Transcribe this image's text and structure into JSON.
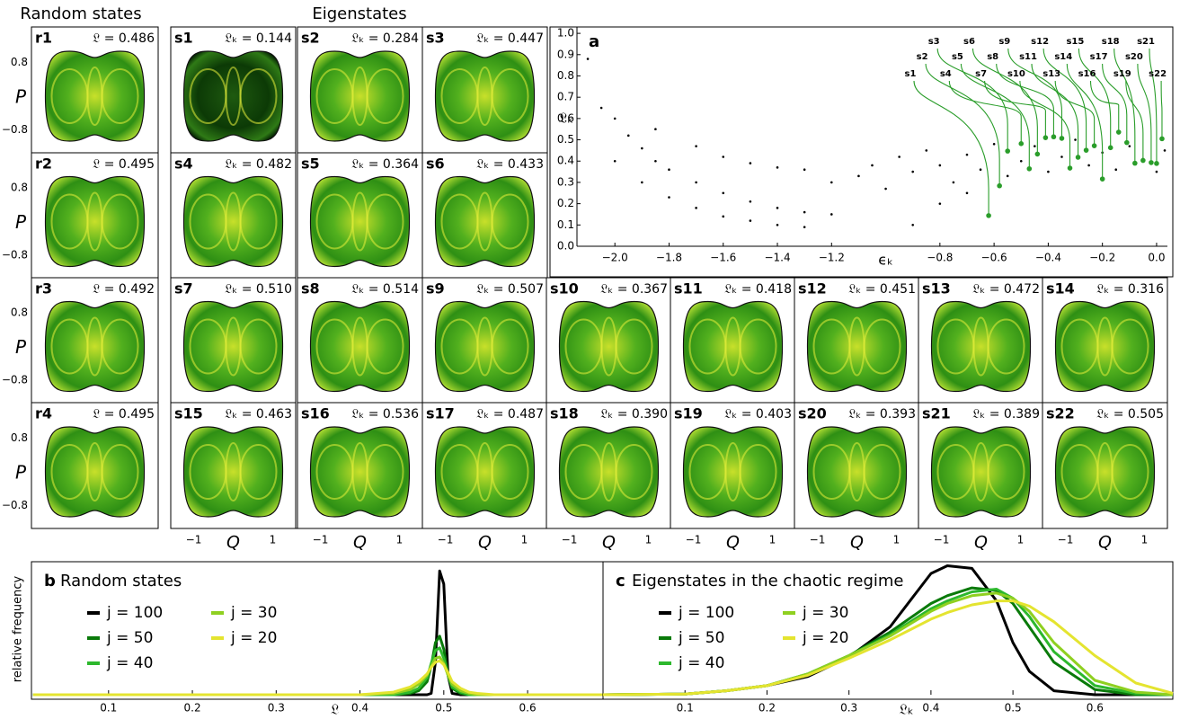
{
  "headers": [
    "Random states",
    "Eigenstates"
  ],
  "thumbnails": [
    {
      "id": "r1",
      "text": "𝔏 = 0.486"
    },
    {
      "id": "r2",
      "text": "𝔏 = 0.495"
    },
    {
      "id": "r3",
      "text": "𝔏 = 0.492"
    },
    {
      "id": "r4",
      "text": "𝔏 = 0.495"
    },
    {
      "id": "s1",
      "text": "𝔏ₖ = 0.144"
    },
    {
      "id": "s2",
      "text": "𝔏ₖ = 0.284"
    },
    {
      "id": "s3",
      "text": "𝔏ₖ = 0.447"
    },
    {
      "id": "s4",
      "text": "𝔏ₖ = 0.482"
    },
    {
      "id": "s5",
      "text": "𝔏ₖ = 0.364"
    },
    {
      "id": "s6",
      "text": "𝔏ₖ = 0.433"
    },
    {
      "id": "s7",
      "text": "𝔏ₖ = 0.510"
    },
    {
      "id": "s8",
      "text": "𝔏ₖ = 0.514"
    },
    {
      "id": "s9",
      "text": "𝔏ₖ = 0.507"
    },
    {
      "id": "s10",
      "text": "𝔏ₖ = 0.367"
    },
    {
      "id": "s11",
      "text": "𝔏ₖ = 0.418"
    },
    {
      "id": "s12",
      "text": "𝔏ₖ = 0.451"
    },
    {
      "id": "s13",
      "text": "𝔏ₖ = 0.472"
    },
    {
      "id": "s14",
      "text": "𝔏ₖ = 0.316"
    },
    {
      "id": "s15",
      "text": "𝔏ₖ = 0.463"
    },
    {
      "id": "s16",
      "text": "𝔏ₖ = 0.536"
    },
    {
      "id": "s17",
      "text": "𝔏ₖ = 0.487"
    },
    {
      "id": "s18",
      "text": "𝔏ₖ = 0.390"
    },
    {
      "id": "s19",
      "text": "𝔏ₖ = 0.403"
    },
    {
      "id": "s20",
      "text": "𝔏ₖ = 0.393"
    },
    {
      "id": "s21",
      "text": "𝔏ₖ = 0.389"
    },
    {
      "id": "s22",
      "text": "𝔏ₖ = 0.505"
    }
  ],
  "p_axis": {
    "label": "P",
    "ticks": [
      0.8,
      {
        "value": -0.8,
        "label": "−0.8"
      }
    ]
  },
  "q_axis": {
    "label": "Q",
    "ticks": [
      {
        "value": -1,
        "label": "−1"
      },
      1
    ]
  },
  "chart_data": [
    {
      "type": "scatter",
      "label": "a",
      "xlabel": "ϵₖ",
      "ylabel": "𝔏ₖ",
      "xlim": [
        -2.14,
        0.04
      ],
      "ylim": [
        0,
        1.03
      ],
      "xticks": [
        {
          "value": -2.0,
          "label": "−2.0"
        },
        {
          "value": -1.8,
          "label": "−1.8"
        },
        {
          "value": -1.6,
          "label": "−1.6"
        },
        {
          "value": -1.4,
          "label": "−1.4"
        },
        {
          "value": -1.2,
          "label": "−1.2"
        },
        {
          "value": -0.8,
          "label": "−0.8"
        },
        {
          "value": -0.6,
          "label": "−0.6"
        },
        {
          "value": -0.4,
          "label": "−0.4"
        },
        {
          "value": -0.2,
          "label": "−0.2"
        },
        {
          "value": 0,
          "label": "0.0"
        }
      ],
      "yticks": [
        {
          "value": 0,
          "label": "0.0"
        },
        0.1,
        0.2,
        0.3,
        0.4,
        0.5,
        0.6,
        0.7,
        0.8,
        0.9,
        {
          "value": 1,
          "label": "1.0"
        }
      ],
      "series": [
        {
          "color": "#000000",
          "x": [
            -2.1,
            -2.05,
            -2.0,
            -1.95,
            -1.9,
            -1.85,
            -1.8,
            -1.7,
            -1.6,
            -1.5,
            -1.4,
            -1.3,
            -1.2,
            -2.0,
            -1.9,
            -1.8,
            -1.7,
            -1.6,
            -1.5,
            -1.4,
            -1.3,
            -1.85,
            -1.7,
            -1.6,
            -1.5,
            -1.4,
            -1.3,
            -1.2,
            -1.1,
            -1.05,
            -1.0,
            -0.95,
            -0.9,
            -0.85,
            -0.8,
            -0.75,
            -0.7,
            -0.65,
            -0.6,
            -0.55,
            -0.5,
            -0.45,
            -0.4,
            -0.35,
            -0.3,
            -0.25,
            -0.2,
            -0.15,
            -0.1,
            -0.05,
            0.0,
            0.03,
            -0.9,
            -0.8,
            -0.7
          ],
          "y": [
            0.88,
            0.65,
            0.6,
            0.52,
            0.46,
            0.4,
            0.36,
            0.3,
            0.25,
            0.21,
            0.18,
            0.16,
            0.15,
            0.4,
            0.3,
            0.23,
            0.18,
            0.14,
            0.12,
            0.1,
            0.09,
            0.55,
            0.47,
            0.42,
            0.39,
            0.37,
            0.36,
            0.3,
            0.33,
            0.38,
            0.27,
            0.42,
            0.35,
            0.45,
            0.38,
            0.3,
            0.43,
            0.36,
            0.48,
            0.33,
            0.4,
            0.47,
            0.35,
            0.42,
            0.5,
            0.38,
            0.44,
            0.36,
            0.47,
            0.41,
            0.35,
            0.45,
            0.1,
            0.2,
            0.25
          ]
        },
        {
          "color": "#2a9d2a",
          "labels": [
            "s1",
            "s2",
            "s3",
            "s4",
            "s5",
            "s6",
            "s7",
            "s8",
            "s9",
            "s10",
            "s11",
            "s12",
            "s13",
            "s14",
            "s15",
            "s16",
            "s17",
            "s18",
            "s19",
            "s20",
            "s21",
            "s22"
          ],
          "x": [
            -0.62,
            -0.58,
            -0.55,
            -0.5,
            -0.47,
            -0.44,
            -0.41,
            -0.38,
            -0.35,
            -0.32,
            -0.29,
            -0.26,
            -0.23,
            -0.2,
            -0.17,
            -0.14,
            -0.11,
            -0.08,
            -0.05,
            -0.02,
            0.0,
            0.02
          ],
          "y": [
            0.144,
            0.284,
            0.447,
            0.482,
            0.364,
            0.433,
            0.51,
            0.514,
            0.507,
            0.367,
            0.418,
            0.451,
            0.472,
            0.316,
            0.463,
            0.536,
            0.487,
            0.39,
            0.403,
            0.393,
            0.389,
            0.505
          ]
        }
      ]
    },
    {
      "type": "line",
      "label": "b",
      "title": "Random states",
      "xlabel": "𝔏",
      "ylabel": "relative frequency",
      "xlim": [
        0.008,
        0.69
      ],
      "ylim": [
        0,
        1
      ],
      "xticks": [
        0.1,
        0.2,
        0.3,
        0.4,
        0.5,
        0.6
      ],
      "x": [
        0.01,
        0.4,
        0.44,
        0.46,
        0.47,
        0.48,
        0.485,
        0.49,
        0.495,
        0.5,
        0.505,
        0.51,
        0.52,
        0.53,
        0.54,
        0.56,
        0.69
      ],
      "series": [
        {
          "name": "j = 100",
          "color": "#000000",
          "values": [
            0,
            0,
            0,
            0,
            0,
            0,
            0.01,
            0.25,
            0.95,
            0.85,
            0.15,
            0.01,
            0,
            0,
            0,
            0,
            0
          ]
        },
        {
          "name": "j = 50",
          "color": "#0a7a0a",
          "values": [
            0,
            0,
            0,
            0.01,
            0.03,
            0.1,
            0.22,
            0.4,
            0.45,
            0.35,
            0.15,
            0.05,
            0.01,
            0,
            0,
            0,
            0
          ]
        },
        {
          "name": "j = 40",
          "color": "#2db82d",
          "values": [
            0,
            0,
            0,
            0.02,
            0.05,
            0.13,
            0.24,
            0.34,
            0.36,
            0.28,
            0.15,
            0.06,
            0.02,
            0,
            0,
            0,
            0
          ]
        },
        {
          "name": "j = 30",
          "color": "#8fd020",
          "values": [
            0,
            0,
            0.01,
            0.04,
            0.08,
            0.15,
            0.22,
            0.28,
            0.29,
            0.24,
            0.15,
            0.08,
            0.03,
            0.01,
            0,
            0,
            0
          ]
        },
        {
          "name": "j = 20",
          "color": "#e4e430",
          "values": [
            0,
            0,
            0.02,
            0.06,
            0.1,
            0.16,
            0.21,
            0.25,
            0.26,
            0.23,
            0.17,
            0.1,
            0.05,
            0.02,
            0.01,
            0,
            0
          ]
        }
      ]
    },
    {
      "type": "line",
      "label": "c",
      "title": "Eigenstates in the chaotic regime",
      "xlabel": "𝔏ₖ",
      "xlim": [
        0,
        0.695
      ],
      "ylim": [
        0,
        1
      ],
      "xticks": [
        0.1,
        0.2,
        0.3,
        0.4,
        0.5,
        0.6
      ],
      "x": [
        0,
        0.1,
        0.15,
        0.2,
        0.25,
        0.3,
        0.35,
        0.4,
        0.42,
        0.45,
        0.48,
        0.5,
        0.52,
        0.55,
        0.6,
        0.65,
        0.695
      ],
      "series": [
        {
          "name": "j = 100",
          "color": "#000000",
          "values": [
            0,
            0.005,
            0.03,
            0.07,
            0.14,
            0.29,
            0.52,
            0.93,
            0.99,
            0.97,
            0.72,
            0.4,
            0.18,
            0.03,
            0,
            0,
            0
          ]
        },
        {
          "name": "j = 50",
          "color": "#0a7a0a",
          "values": [
            0,
            0.005,
            0.03,
            0.07,
            0.16,
            0.3,
            0.48,
            0.7,
            0.76,
            0.82,
            0.8,
            0.7,
            0.52,
            0.25,
            0.04,
            0,
            0
          ]
        },
        {
          "name": "j = 40",
          "color": "#2db82d",
          "values": [
            0,
            0.005,
            0.03,
            0.07,
            0.16,
            0.3,
            0.46,
            0.66,
            0.72,
            0.79,
            0.81,
            0.74,
            0.6,
            0.33,
            0.07,
            0.01,
            0
          ]
        },
        {
          "name": "j = 30",
          "color": "#8fd020",
          "values": [
            0,
            0.005,
            0.03,
            0.07,
            0.16,
            0.3,
            0.45,
            0.64,
            0.7,
            0.76,
            0.78,
            0.74,
            0.64,
            0.4,
            0.11,
            0.02,
            0
          ]
        },
        {
          "name": "j = 20",
          "color": "#e4e430",
          "values": [
            0,
            0.005,
            0.03,
            0.07,
            0.15,
            0.28,
            0.42,
            0.58,
            0.63,
            0.69,
            0.72,
            0.72,
            0.68,
            0.56,
            0.3,
            0.09,
            0.01
          ]
        }
      ]
    }
  ]
}
